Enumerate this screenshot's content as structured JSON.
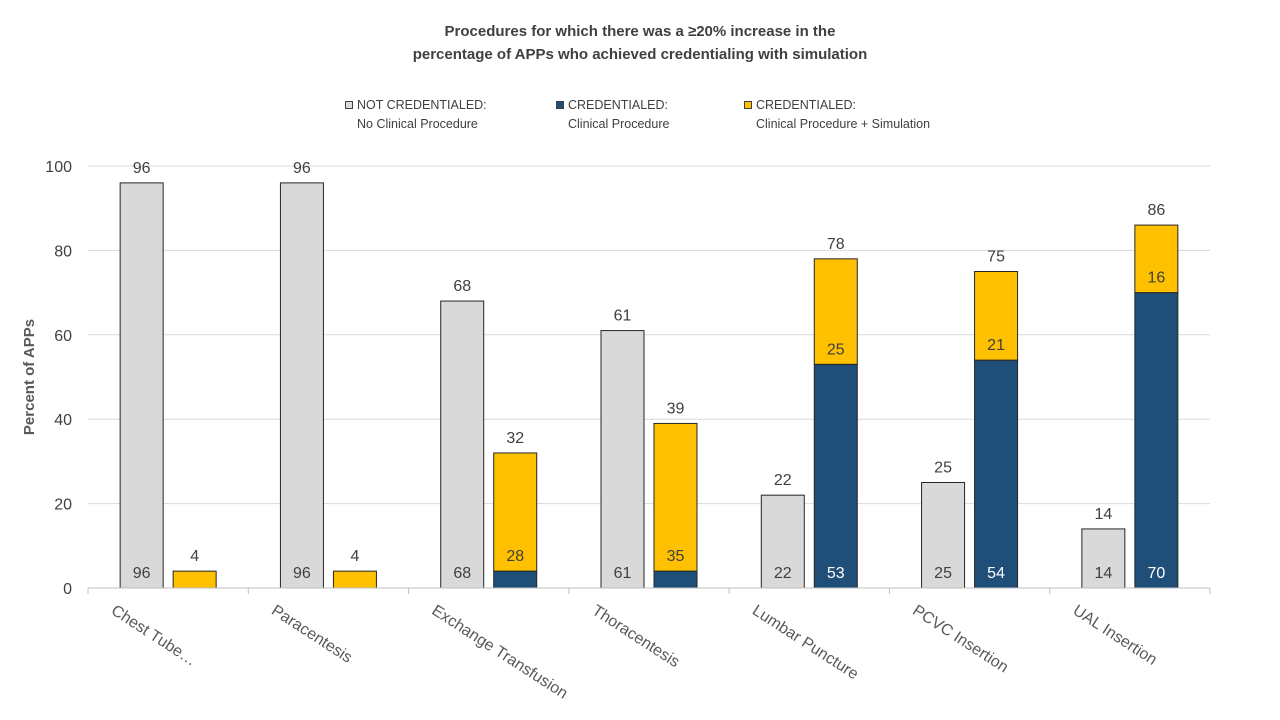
{
  "chart_data": {
    "type": "bar",
    "title_line1": "Procedures for which there was a ≥20% increase in the",
    "title_line2": "percentage of APPs who achieved credentialing with simulation",
    "ylabel": "Percent of APPs",
    "xlabel": "",
    "ylim": [
      0,
      100
    ],
    "yticks": [
      0,
      20,
      40,
      60,
      80,
      100
    ],
    "grid": true,
    "legend_position": "top",
    "categories": [
      "Chest Tube…",
      "Paracentesis",
      "Exchange Transfusion",
      "Thoracentesis",
      "Lumbar Puncture",
      "PCVC Insertion",
      "UAL Insertion"
    ],
    "legend": [
      {
        "line1": "NOT CREDENTIALED:",
        "line2": "No Clinical Procedure",
        "color": "#d9d9d9"
      },
      {
        "line1": "CREDENTIALED:",
        "line2": "Clinical Procedure",
        "color": "#1f4e79"
      },
      {
        "line1": "CREDENTIALED:",
        "line2": "Clinical Procedure + Simulation",
        "color": "#ffc000"
      }
    ],
    "series": [
      {
        "group": "not_credentialed",
        "values": [
          96,
          96,
          68,
          61,
          22,
          25,
          14
        ],
        "color": "#d9d9d9"
      },
      {
        "group": "clinical_procedure",
        "values": [
          0,
          0,
          4,
          4,
          53,
          54,
          70
        ],
        "color": "#1f4e79"
      },
      {
        "group": "clinical_plus_simulation",
        "values": [
          4,
          4,
          28,
          35,
          25,
          21,
          16
        ],
        "color": "#ffc000"
      }
    ],
    "stack_totals": [
      4,
      4,
      32,
      39,
      78,
      75,
      86
    ],
    "inner_labels": {
      "not_credentialed": [
        "96",
        "96",
        "68",
        "61",
        "22",
        "25",
        "14"
      ],
      "clinical_procedure": [
        "",
        "",
        "",
        "",
        "53",
        "54",
        "70"
      ],
      "clinical_plus_simulation": [
        "",
        "",
        "28",
        "35",
        "25",
        "21",
        "16"
      ]
    }
  }
}
